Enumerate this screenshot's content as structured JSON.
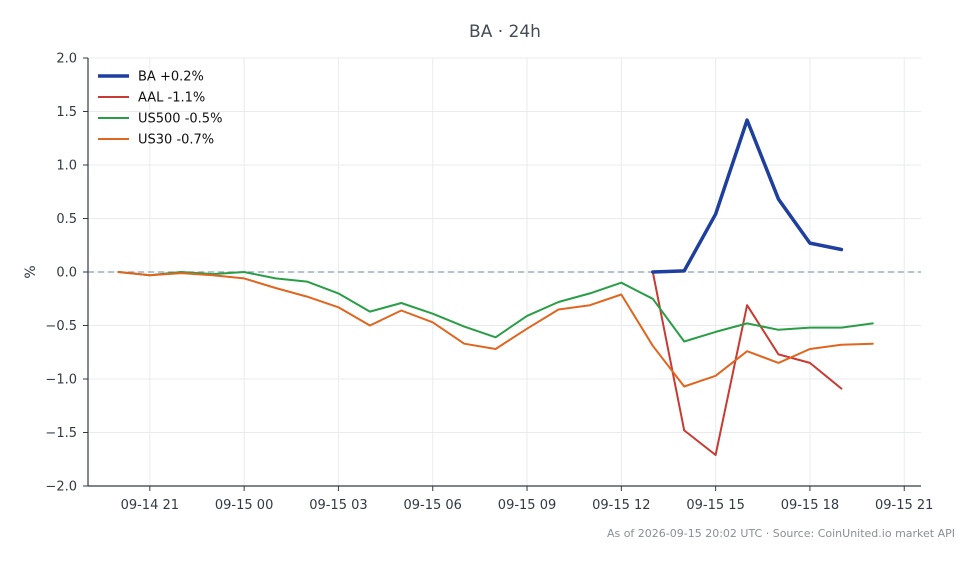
{
  "chart_data": {
    "type": "line",
    "title": "BA · 24h",
    "xlabel": "",
    "ylabel": "%",
    "ylim": [
      -2.0,
      2.0
    ],
    "xlim": [
      "2026-09-14 19:02",
      "2026-09-15 21:32"
    ],
    "y_ticks": [
      -2.0,
      -1.5,
      -1.0,
      -0.5,
      0.0,
      0.5,
      1.0,
      1.5,
      2.0
    ],
    "y_tick_labels": [
      "−2.0",
      "−1.5",
      "−1.0",
      "−0.5",
      "0.0",
      "0.5",
      "1.0",
      "1.5",
      "2.0"
    ],
    "x_ticks": [
      "2026-09-14 21:00",
      "2026-09-15 00:00",
      "2026-09-15 03:00",
      "2026-09-15 06:00",
      "2026-09-15 09:00",
      "2026-09-15 12:00",
      "2026-09-15 15:00",
      "2026-09-15 18:00",
      "2026-09-15 21:00"
    ],
    "x_tick_labels": [
      "09-14 21",
      "09-15 00",
      "09-15 03",
      "09-15 06",
      "09-15 09",
      "09-15 12",
      "09-15 15",
      "09-15 18",
      "09-15 21"
    ],
    "grid": true,
    "reference_line": 0,
    "legend_position": "top-left",
    "series": [
      {
        "name": "BA +0.2%",
        "color": "#1f3f9e",
        "width": 3.5,
        "x": [
          "2026-09-15 13:00",
          "2026-09-15 14:00",
          "2026-09-15 15:00",
          "2026-09-15 16:00",
          "2026-09-15 17:00",
          "2026-09-15 18:00",
          "2026-09-15 19:00"
        ],
        "values": [
          0.0,
          0.01,
          0.54,
          1.42,
          0.68,
          0.27,
          0.21
        ]
      },
      {
        "name": "AAL -1.1%",
        "color": "#c93a32",
        "width": 2,
        "x": [
          "2026-09-15 13:00",
          "2026-09-15 14:00",
          "2026-09-15 15:00",
          "2026-09-15 16:00",
          "2026-09-15 17:00",
          "2026-09-15 18:00",
          "2026-09-15 19:00"
        ],
        "values": [
          0.0,
          -1.48,
          -1.71,
          -0.31,
          -0.77,
          -0.85,
          -1.09
        ]
      },
      {
        "name": "US500 -0.5%",
        "color": "#2a9d47",
        "width": 2,
        "x": [
          "2026-09-14 20:00",
          "2026-09-14 21:00",
          "2026-09-14 22:00",
          "2026-09-14 23:00",
          "2026-09-15 00:00",
          "2026-09-15 01:00",
          "2026-09-15 02:00",
          "2026-09-15 03:00",
          "2026-09-15 04:00",
          "2026-09-15 05:00",
          "2026-09-15 06:00",
          "2026-09-15 07:00",
          "2026-09-15 08:00",
          "2026-09-15 09:00",
          "2026-09-15 10:00",
          "2026-09-15 11:00",
          "2026-09-15 12:00",
          "2026-09-15 13:00",
          "2026-09-15 14:00",
          "2026-09-15 15:00",
          "2026-09-15 16:00",
          "2026-09-15 17:00",
          "2026-09-15 18:00",
          "2026-09-15 19:00",
          "2026-09-15 20:00"
        ],
        "values": [
          0.0,
          -0.03,
          0.0,
          -0.02,
          0.0,
          -0.06,
          -0.09,
          -0.2,
          -0.37,
          -0.29,
          -0.39,
          -0.51,
          -0.61,
          -0.41,
          -0.28,
          -0.2,
          -0.1,
          -0.25,
          -0.65,
          -0.56,
          -0.48,
          -0.54,
          -0.52,
          -0.52,
          -0.48
        ]
      },
      {
        "name": "US30 -0.7%",
        "color": "#e0651f",
        "width": 2,
        "x": [
          "2026-09-14 20:00",
          "2026-09-14 21:00",
          "2026-09-14 22:00",
          "2026-09-14 23:00",
          "2026-09-15 00:00",
          "2026-09-15 01:00",
          "2026-09-15 02:00",
          "2026-09-15 03:00",
          "2026-09-15 04:00",
          "2026-09-15 05:00",
          "2026-09-15 06:00",
          "2026-09-15 07:00",
          "2026-09-15 08:00",
          "2026-09-15 09:00",
          "2026-09-15 10:00",
          "2026-09-15 11:00",
          "2026-09-15 12:00",
          "2026-09-15 13:00",
          "2026-09-15 14:00",
          "2026-09-15 15:00",
          "2026-09-15 16:00",
          "2026-09-15 17:00",
          "2026-09-15 18:00",
          "2026-09-15 19:00",
          "2026-09-15 20:00"
        ],
        "values": [
          0.0,
          -0.03,
          -0.01,
          -0.03,
          -0.06,
          -0.15,
          -0.23,
          -0.33,
          -0.5,
          -0.36,
          -0.47,
          -0.67,
          -0.72,
          -0.53,
          -0.35,
          -0.31,
          -0.21,
          -0.69,
          -1.07,
          -0.97,
          -0.74,
          -0.85,
          -0.72,
          -0.68,
          -0.67
        ]
      }
    ]
  },
  "footer": {
    "note": "As of 2026-09-15 20:02 UTC · Source: CoinUnited.io market API"
  }
}
